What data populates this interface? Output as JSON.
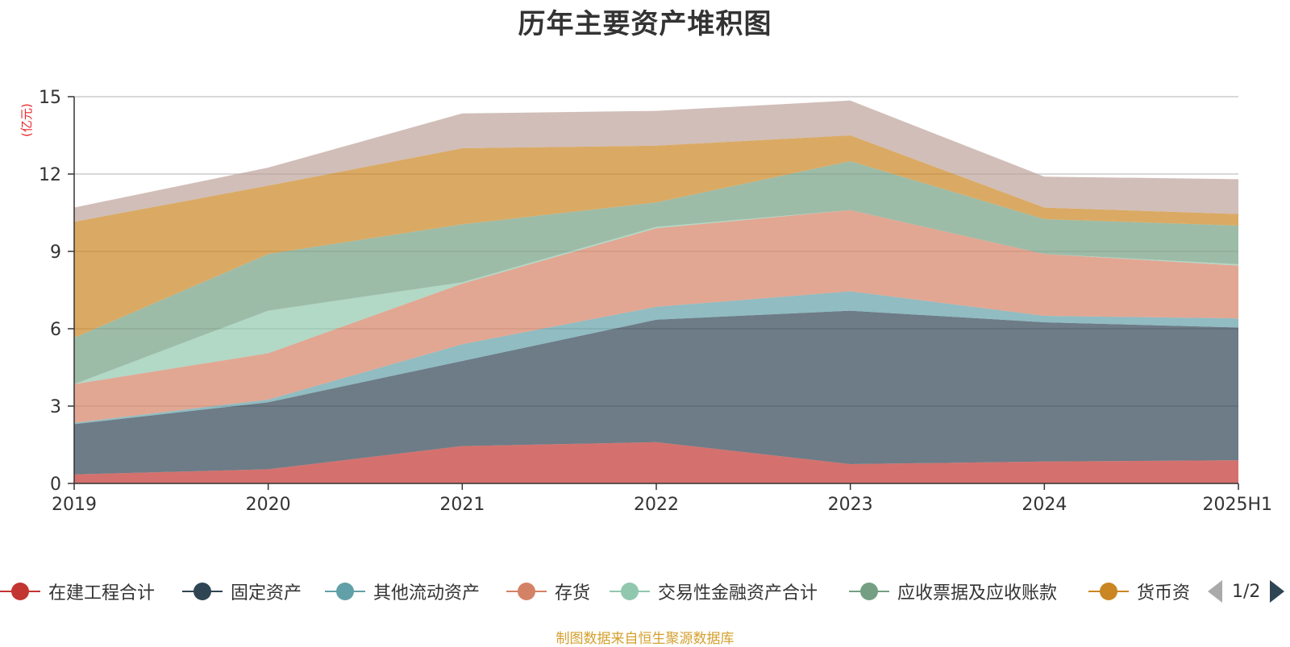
{
  "chart_data": {
    "type": "area",
    "stacked": true,
    "title": "历年主要资产堆积图",
    "ylabel": "(亿元)",
    "xlabel": "",
    "categories": [
      "2019",
      "2020",
      "2021",
      "2022",
      "2023",
      "2024",
      "2025H1"
    ],
    "ylim": [
      0,
      15
    ],
    "yticks": [
      0,
      3,
      6,
      9,
      12,
      15
    ],
    "grid": true,
    "series": [
      {
        "name": "在建工程合计",
        "color": "#c23531",
        "values": [
          0.35,
          0.55,
          1.45,
          1.6,
          0.75,
          0.85,
          0.9
        ]
      },
      {
        "name": "固定资产",
        "color": "#2f4554",
        "values": [
          1.95,
          2.6,
          3.3,
          4.75,
          5.95,
          5.4,
          5.15
        ]
      },
      {
        "name": "其他流动资产",
        "color": "#61a0a8",
        "values": [
          0.05,
          0.1,
          0.65,
          0.5,
          0.75,
          0.25,
          0.35
        ]
      },
      {
        "name": "存货",
        "color": "#d48265",
        "values": [
          1.5,
          1.8,
          2.35,
          3.05,
          3.15,
          2.4,
          2.05
        ]
      },
      {
        "name": "交易性金融资产合计",
        "color": "#91c7ae",
        "values": [
          0.0,
          1.65,
          0.05,
          0.05,
          0.0,
          0.0,
          0.05
        ]
      },
      {
        "name": "应收票据及应收账款",
        "color": "#749f83",
        "values": [
          1.8,
          2.2,
          2.25,
          0.95,
          1.9,
          1.35,
          1.5
        ]
      },
      {
        "name": "货币资金",
        "color": "#ca8622",
        "values": [
          4.5,
          2.65,
          2.95,
          2.2,
          1.0,
          0.45,
          0.45
        ]
      },
      {
        "name": "",
        "color": "#bda29a",
        "values": [
          0.55,
          0.7,
          1.35,
          1.35,
          1.35,
          1.2,
          1.35
        ]
      }
    ]
  },
  "legend": {
    "items": [
      {
        "label": "在建工程合计",
        "color": "#c23531"
      },
      {
        "label": "固定资产",
        "color": "#2f4554"
      },
      {
        "label": "其他流动资产",
        "color": "#61a0a8"
      },
      {
        "label": "存货",
        "color": "#d48265"
      },
      {
        "label": "交易性金融资产合计",
        "color": "#91c7ae"
      },
      {
        "label": "应收票据及应收账款",
        "color": "#749f83"
      },
      {
        "label": "货币资",
        "color": "#ca8622"
      }
    ],
    "page": "1/2"
  },
  "source": "制图数据来自恒生聚源数据库"
}
